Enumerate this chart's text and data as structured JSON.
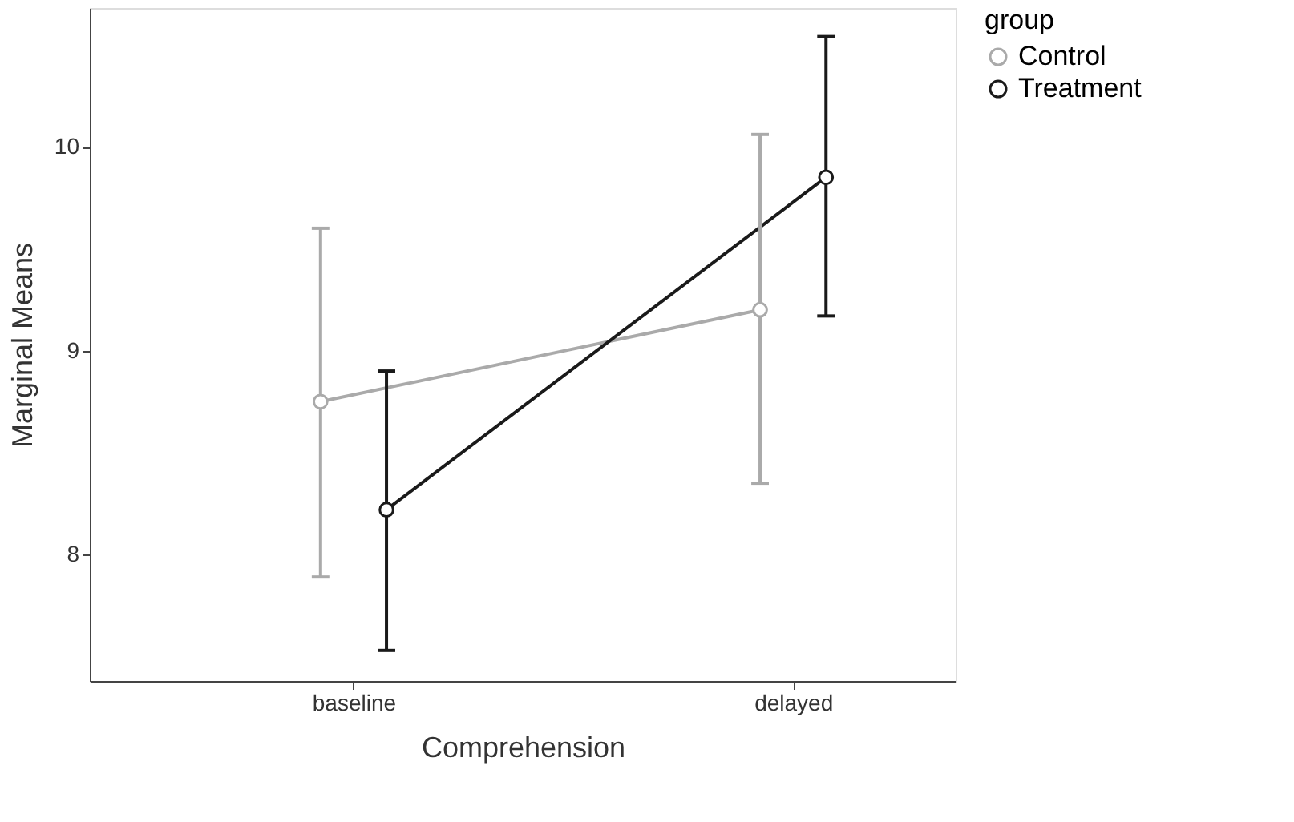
{
  "chart_data": {
    "type": "line",
    "xlabel": "Comprehension",
    "ylabel": "Marginal Means",
    "legend_title": "group",
    "categories": [
      "baseline",
      "delayed"
    ],
    "series": [
      {
        "name": "Control",
        "color": "#aaaaaa",
        "values": [
          8.75,
          9.2
        ],
        "errors": [
          [
            7.89,
            9.6
          ],
          [
            8.35,
            10.06
          ]
        ]
      },
      {
        "name": "Treatment",
        "color": "#1a1a1a",
        "values": [
          8.22,
          9.85
        ],
        "errors": [
          [
            7.53,
            8.9
          ],
          [
            9.17,
            10.54
          ]
        ]
      }
    ],
    "ylim": [
      7.38,
      10.68
    ],
    "yticks": [
      8,
      9,
      10
    ],
    "grid": false,
    "legend": "right",
    "marker": "circle",
    "line_style": "solid"
  }
}
